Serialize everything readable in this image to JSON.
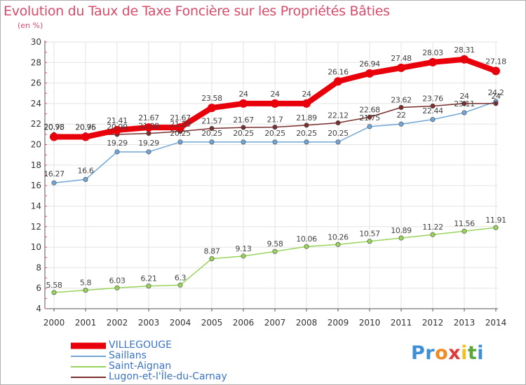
{
  "title": "Evolution du Taux de Taxe Foncière sur les Propriétés Bâties",
  "subtitle": "(en %)",
  "brand": {
    "letters": [
      "P",
      "r",
      "o",
      "x",
      "i",
      "t",
      "i"
    ],
    "colors": [
      "#3e8fd6",
      "#3e8fd6",
      "#f08a24",
      "#e03a3a",
      "#f0c020",
      "#5aa83a",
      "#3e8fd6"
    ]
  },
  "chart_data": {
    "type": "line",
    "title": "Evolution du Taux de Taxe Foncière sur les Propriétés Bâties",
    "ylabel": "(en %)",
    "xlabel": "",
    "ylim": [
      4,
      30
    ],
    "yticks": [
      4,
      6,
      8,
      10,
      12,
      14,
      16,
      18,
      20,
      22,
      24,
      26,
      28,
      30
    ],
    "grid": true,
    "categories": [
      "2000",
      "2001",
      "2002",
      "2003",
      "2004",
      "2005",
      "2006",
      "2007",
      "2008",
      "2009",
      "2010",
      "2011",
      "2012",
      "2013",
      "2014"
    ],
    "series": [
      {
        "name": "VILLEGOUGE",
        "color": "#e8000a",
        "values": [
          20.75,
          20.75,
          21.41,
          21.67,
          21.67,
          23.58,
          24,
          24,
          24,
          26.16,
          26.94,
          27.48,
          28.03,
          28.31,
          27.18
        ],
        "labels": [
          "20.75",
          "20.75",
          "21.41",
          "21.67",
          "21.67",
          "23.58",
          "24",
          "24",
          "24",
          "26.16",
          "26.94",
          "27.48",
          "28.03",
          "28.31",
          "27.18"
        ]
      },
      {
        "name": "Saillans",
        "color": "#6fa6d6",
        "values": [
          16.27,
          16.6,
          19.29,
          19.29,
          20.25,
          20.25,
          20.25,
          20.25,
          20.25,
          20.25,
          21.75,
          22,
          22.44,
          23.11,
          24.2
        ],
        "labels": [
          "16.27",
          "16.6",
          "19.29",
          "19.29",
          "20.25",
          "20.25",
          "20.25",
          "20.25",
          "20.25",
          "20.25",
          "21.75",
          "22",
          "22.44",
          "23.11",
          "24.2"
        ]
      },
      {
        "name": "Saint-Aignan",
        "color": "#98d45a",
        "values": [
          5.58,
          5.8,
          6.03,
          6.21,
          6.3,
          8.87,
          9.13,
          9.58,
          10.06,
          10.26,
          10.57,
          10.89,
          11.22,
          11.56,
          11.91
        ],
        "labels": [
          "5.58",
          "5.8",
          "6.03",
          "6.21",
          "6.3",
          "8.87",
          "9.13",
          "9.58",
          "10.06",
          "10.26",
          "10.57",
          "10.89",
          "11.22",
          "11.56",
          "11.91"
        ]
      },
      {
        "name": "Lugon-et-l'Île-du-Carnay",
        "color": "#7a2e2e",
        "values": [
          20.98,
          20.96,
          20.99,
          21.09,
          21.28,
          21.57,
          21.67,
          21.7,
          21.89,
          22.12,
          22.68,
          23.62,
          23.76,
          24,
          24
        ],
        "labels": [
          "20.98",
          "20.96",
          "20.99",
          "21.09",
          "21.28",
          "21.57",
          "21.67",
          "21.7",
          "21.89",
          "22.12",
          "22.68",
          "23.62",
          "23.76",
          "24",
          "24"
        ]
      }
    ]
  }
}
